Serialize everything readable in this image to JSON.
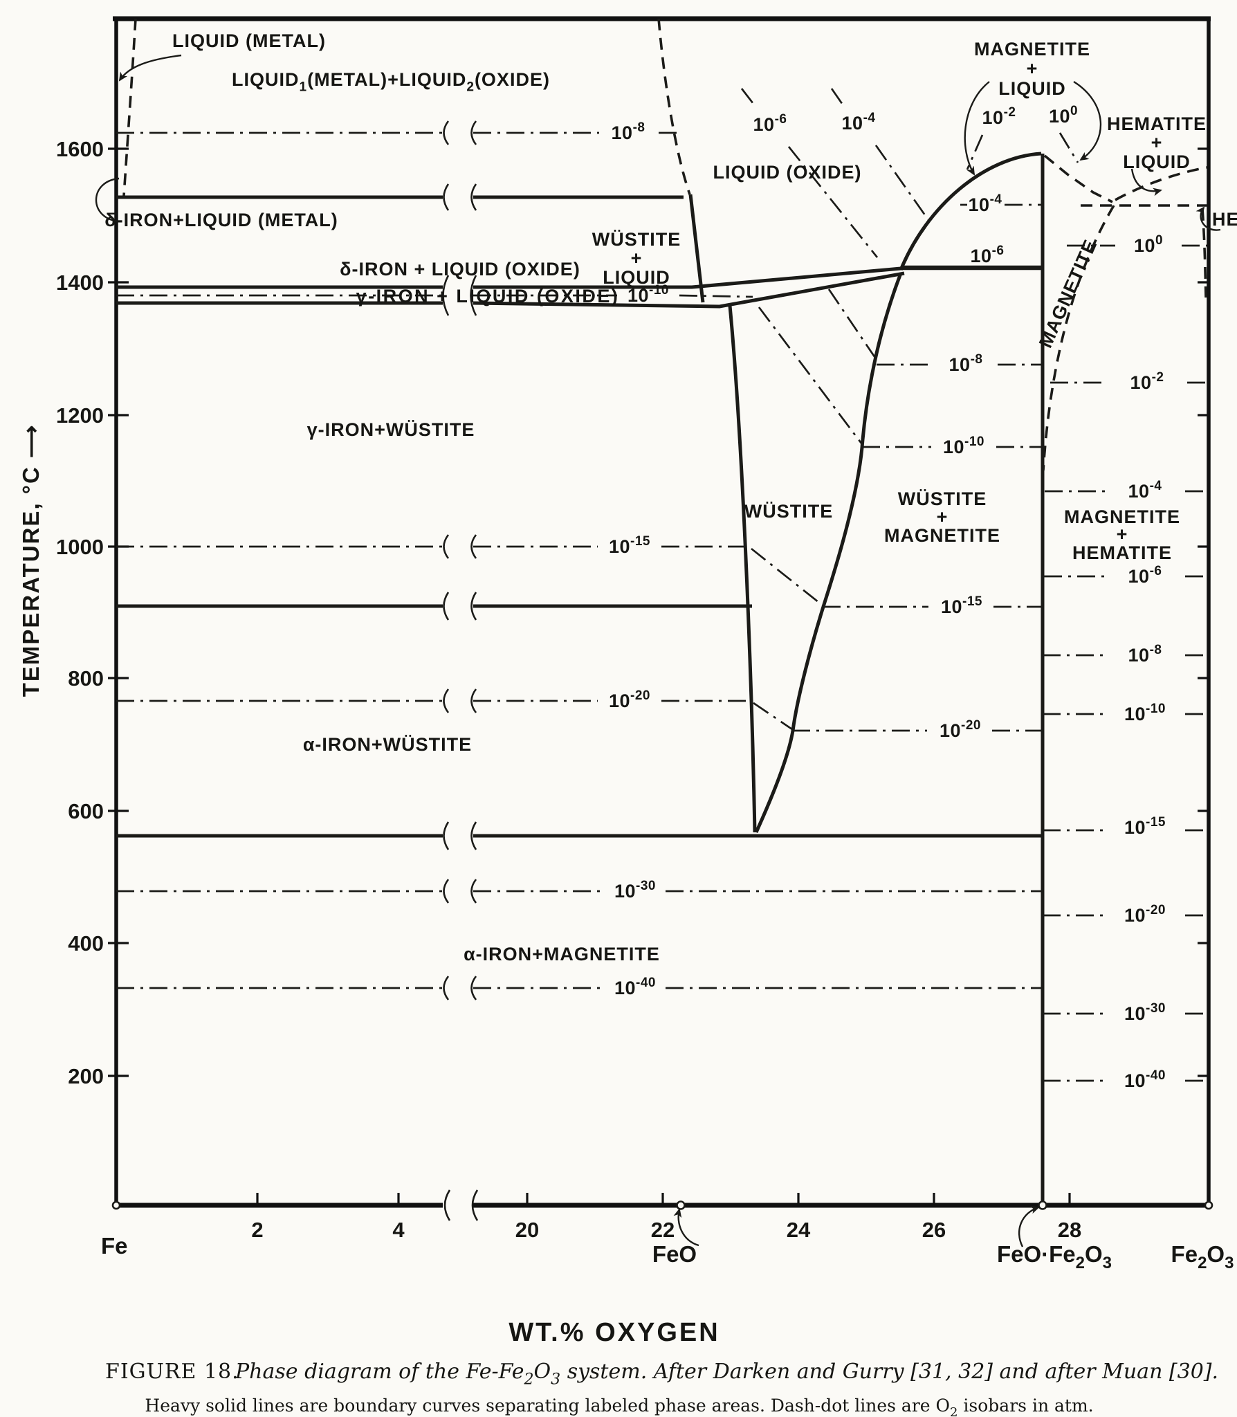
{
  "axes": {
    "y_label": "TEMPERATURE, °C ⟶",
    "x_label": "WT.% OXYGEN",
    "y_ticks": [
      "1600",
      "1400",
      "1200",
      "1000",
      "800",
      "600",
      "400",
      "200"
    ],
    "x_ticks": [
      "2",
      "4",
      "20",
      "22",
      "24",
      "26",
      "28"
    ],
    "compounds": {
      "fe": "Fe",
      "feo": "FeO",
      "feofe2o3": "FeO·Fe_{2}O_{3}",
      "fe2o3": "Fe_{2}O_{3}"
    }
  },
  "labels": {
    "regions": {
      "liquid_metal": "LIQUID (METAL)",
      "liquid1_liquid2": "LIQUID_{1}(METAL)+LIQUID_{2}(OXIDE)",
      "delta_iron_liquid_metal": "δ-IRON+LIQUID (METAL)",
      "delta_iron_liquid_oxide": "δ-IRON + LIQUID (OXIDE)",
      "gamma_iron_liquid_oxide": "γ-IRON + LIQUID (OXIDE)",
      "gamma_iron_wustite": "γ-IRON+WÜSTITE",
      "wustite_liquid": [
        "WÜSTITE",
        "+",
        "LIQUID"
      ],
      "liquid_oxide": "LIQUID (OXIDE)",
      "magnetite_liquid": [
        "MAGNETITE",
        "+",
        "LIQUID"
      ],
      "hematite_liquid": [
        "HEMATITE",
        "+",
        "LIQUID"
      ],
      "wustite": "WÜSTITE",
      "wustite_magnetite": [
        "WÜSTITE",
        "+",
        "MAGNETITE"
      ],
      "magnetite": "MAGNETITE",
      "magnetite_hematite": [
        "MAGNETITE",
        "+",
        "HEMATITE"
      ],
      "alpha_iron_wustite": "α-IRON+WÜSTITE",
      "alpha_iron_magnetite": "α-IRON+MAGNETITE",
      "hematite_cut": "HE"
    },
    "iso": {
      "p0": "10^{0}",
      "m2": "10^{-2}",
      "m4": "10^{-4}",
      "m6": "10^{-6}",
      "m8": "10^{-8}",
      "m10": "10^{-10}",
      "m15": "10^{-15}",
      "m20": "10^{-20}",
      "m30": "10^{-30}",
      "m40": "10^{-40}"
    }
  },
  "caption": {
    "figure_label": "FIGURE 18.",
    "text": "Phase diagram of the Fe-Fe_{2}O_{3} system. After Darken and Gurry [31, 32] and after Muan [30].",
    "note": "Heavy solid lines are boundary curves separating labeled phase areas. Dash-dot lines are O_{2} isobars in atm."
  },
  "chart_data": {
    "type": "phase-diagram",
    "title": "Phase diagram of the Fe-Fe2O3 system. After Darken and Gurry [31, 32] and after Muan [30]",
    "xlabel": "WT.% OXYGEN",
    "ylabel": "TEMPERATURE, °C",
    "x_axis": {
      "unit": "wt% oxygen",
      "broken_axis": true,
      "left_segment_ticks": [
        2,
        4
      ],
      "right_segment_ticks": [
        20,
        22,
        24,
        26,
        28
      ],
      "landmarks": [
        {
          "label": "Fe",
          "wt_pct_O": 0
        },
        {
          "label": "FeO",
          "wt_pct_O": 22.3
        },
        {
          "label": "FeO·Fe2O3",
          "wt_pct_O": 27.6
        },
        {
          "label": "Fe2O3",
          "wt_pct_O": 30.1
        }
      ]
    },
    "y_axis": {
      "unit": "°C",
      "ticks": [
        200,
        400,
        600,
        800,
        1000,
        1200,
        1400,
        1600
      ],
      "range": [
        0,
        1790
      ]
    },
    "phase_regions": [
      "LIQUID (METAL)",
      "LIQUID1(METAL)+LIQUID2(OXIDE)",
      "δ-IRON+LIQUID (METAL)",
      "δ-IRON + LIQUID (OXIDE)",
      "γ-IRON + LIQUID (OXIDE)",
      "γ-IRON+WÜSTITE",
      "WÜSTITE+LIQUID",
      "LIQUID (OXIDE)",
      "MAGNETITE+LIQUID",
      "HEMATITE+LIQUID",
      "WÜSTITE",
      "WÜSTITE+MAGNETITE",
      "MAGNETITE",
      "MAGNETITE+HEMATITE",
      "HEMATITE",
      "α-IRON+WÜSTITE",
      "α-IRON+MAGNETITE"
    ],
    "invariant_lines_c": {
      "delta_iron_peritectic": 1528,
      "delta_to_gamma_band_upper": 1390,
      "gamma_band_lower": 1371,
      "wustite_liquid_magnetite": 1424,
      "magnetite_liquidus_peak": 1595,
      "alpha_gamma_transition": 910,
      "wustite_eutectoid": 560
    },
    "o2_isobars_atm": [
      "10^0",
      "10^-2",
      "10^-4",
      "10^-6",
      "10^-8",
      "10^-10",
      "10^-15",
      "10^-20",
      "10^-30",
      "10^-40"
    ],
    "isobar_temperatures_magnetite_hematite_field_c": {
      "10^0": 1455,
      "10^-2": 1247,
      "10^-4": 1082,
      "10^-6": 953,
      "10^-8": 835,
      "10^-10": 746,
      "10^-15": 570,
      "10^-20": 442,
      "10^-30": 294,
      "10^-40": 192
    },
    "isobar_temperatures_iron_oxide_field_c": {
      "10^-8": 1625,
      "10^-10": 1380,
      "10^-15": 1000,
      "10^-20": 766,
      "10^-30": 479,
      "10^-40": 333
    }
  }
}
